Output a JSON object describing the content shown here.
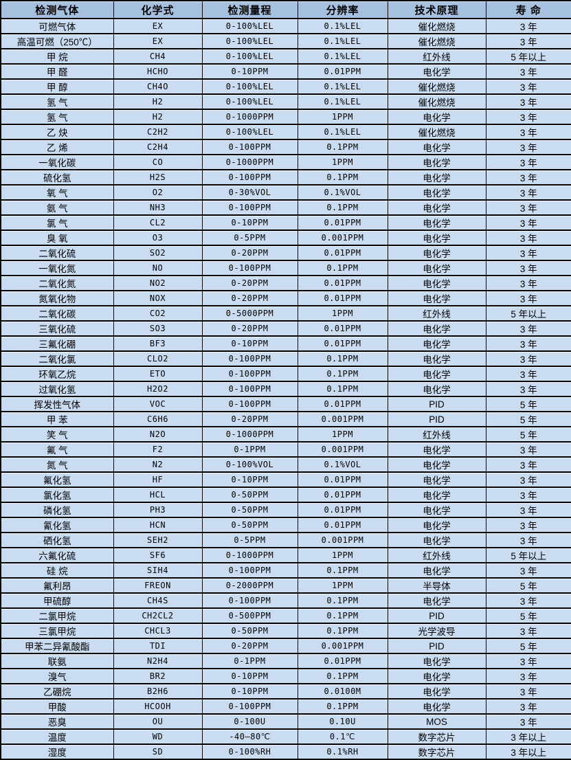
{
  "colors": {
    "header_bg": "#a6c1e0",
    "row_bg": "#c9dcf2",
    "border": "#000000",
    "text": "#000000"
  },
  "table": {
    "headers": [
      "检测气体",
      "化学式",
      "检测量程",
      "分辨率",
      "技术原理",
      "寿 命"
    ],
    "rows": [
      [
        "可燃气体",
        "EX",
        "0-100%LEL",
        "0.1%LEL",
        "催化燃烧",
        "3 年"
      ],
      [
        "高温可燃（250℃）",
        "EX",
        "0-100%LEL",
        "0.1%LEL",
        "催化燃烧",
        "3 年"
      ],
      [
        "甲 烷",
        "CH4",
        "0-100%LEL",
        "0.1%LEL",
        "红外线",
        "5 年以上"
      ],
      [
        "甲 醛",
        "HCHO",
        "0-10PPM",
        "0.01PPM",
        "电化学",
        "3 年"
      ],
      [
        "甲 醇",
        "CH4O",
        "0-100%LEL",
        "0.1%LEL",
        "催化燃烧",
        "3 年"
      ],
      [
        "氢 气",
        "H2",
        "0-100%LEL",
        "0.1%LEL",
        "催化燃烧",
        "3 年"
      ],
      [
        "氢 气",
        "H2",
        "0-1000PPM",
        "1PPM",
        "电化学",
        "3 年"
      ],
      [
        "乙 炔",
        "C2H2",
        "0-100%LEL",
        "0.1%LEL",
        "催化燃烧",
        "3 年"
      ],
      [
        "乙 烯",
        "C2H4",
        "0-100PPM",
        "0.1PPM",
        "电化学",
        "3 年"
      ],
      [
        "一氧化碳",
        "CO",
        "0-1000PPM",
        "1PPM",
        "电化学",
        "3 年"
      ],
      [
        "硫化氢",
        "H2S",
        "0-100PPM",
        "0.1PPM",
        "电化学",
        "3 年"
      ],
      [
        "氧 气",
        "O2",
        "0-30%VOL",
        "0.1%VOL",
        "电化学",
        "3 年"
      ],
      [
        "氨 气",
        "NH3",
        "0-100PPM",
        "0.1PPM",
        "电化学",
        "3 年"
      ],
      [
        "氯 气",
        "CL2",
        "0-10PPM",
        "0.01PPM",
        "电化学",
        "3 年"
      ],
      [
        "臭 氧",
        "O3",
        "0-5PPM",
        "0.001PPM",
        "电化学",
        "3 年"
      ],
      [
        "二氧化硫",
        "SO2",
        "0-20PPM",
        "0.01PPM",
        "电化学",
        "3 年"
      ],
      [
        "一氧化氮",
        "NO",
        "0-100PPM",
        "0.1PPM",
        "电化学",
        "3 年"
      ],
      [
        "二氧化氮",
        "NO2",
        "0-20PPM",
        "0.01PPM",
        "电化学",
        "3 年"
      ],
      [
        "氮氧化物",
        "NOX",
        "0-20PPM",
        "0.01PPM",
        "电化学",
        "3 年"
      ],
      [
        "二氧化碳",
        "CO2",
        "0-5000PPM",
        "1PPM",
        "红外线",
        "5 年以上"
      ],
      [
        "三氧化硫",
        "SO3",
        "0-20PPM",
        "0.01PPM",
        "电化学",
        "3 年"
      ],
      [
        "三氟化硼",
        "BF3",
        "0-10PPM",
        "0.01PPM",
        "电化学",
        "3 年"
      ],
      [
        "二氧化氯",
        "CLO2",
        "0-100PPM",
        "0.1PPM",
        "电化学",
        "3 年"
      ],
      [
        "环氧乙烷",
        "ETO",
        "0-100PPM",
        "0.1PPM",
        "电化学",
        "3 年"
      ],
      [
        "过氧化氢",
        "H2O2",
        "0-100PPM",
        "0.1PPM",
        "电化学",
        "3 年"
      ],
      [
        "挥发性气体",
        "VOC",
        "0-100PPM",
        "0.01PPM",
        "PID",
        "5 年"
      ],
      [
        "甲 苯",
        "C6H6",
        "0-20PPM",
        "0.001PPM",
        "PID",
        "5 年"
      ],
      [
        "笑 气",
        "N2O",
        "0-1000PPM",
        "1PPM",
        "红外线",
        "5 年"
      ],
      [
        "氟 气",
        "F2",
        "0-1PPM",
        "0.001PPM",
        "电化学",
        "3 年"
      ],
      [
        "氮 气",
        "N2",
        "0-100%VOL",
        "0.1%VOL",
        "电化学",
        "3 年"
      ],
      [
        "氟化氢",
        "HF",
        "0-10PPM",
        "0.01PPM",
        "电化学",
        "3 年"
      ],
      [
        "氯化氢",
        "HCL",
        "0-50PPM",
        "0.01PPM",
        "电化学",
        "3 年"
      ],
      [
        "磷化氢",
        "PH3",
        "0-50PPM",
        "0.01PPM",
        "电化学",
        "3 年"
      ],
      [
        "氰化氢",
        "HCN",
        "0-50PPM",
        "0.01PPM",
        "电化学",
        "3 年"
      ],
      [
        "硒化氢",
        "SEH2",
        "0-5PPM",
        "0.001PPM",
        "电化学",
        "3 年"
      ],
      [
        "六氟化硫",
        "SF6",
        "0-1000PPM",
        "1PPM",
        "红外线",
        "5 年以上"
      ],
      [
        "硅 烷",
        "SIH4",
        "0-100PPM",
        "0.1PPM",
        "电化学",
        "3 年"
      ],
      [
        "氟利昂",
        "FREON",
        "0-2000PPM",
        "1PPM",
        "半导体",
        "5 年"
      ],
      [
        "甲硫醇",
        "CH4S",
        "0-100PPM",
        "0.1PPM",
        "电化学",
        "3 年"
      ],
      [
        "二氯甲烷",
        "CH2CL2",
        "0-500PPM",
        "0.1PPM",
        "PID",
        "5 年"
      ],
      [
        "三氯甲烷",
        "CHCL3",
        "0-50PPM",
        "0.1PPM",
        "光学波导",
        "3 年"
      ],
      [
        "甲苯二异氰酸酯",
        "TDI",
        "0-20PPM",
        "0.001PPM",
        "PID",
        "5 年"
      ],
      [
        "联氨",
        "N2H4",
        "0-1PPM",
        "0.01PPM",
        "电化学",
        "3 年"
      ],
      [
        "溴气",
        "BR2",
        "0-10PPM",
        "0.1PPM",
        "电化学",
        "3 年"
      ],
      [
        "乙硼烷",
        "B2H6",
        "0-10PPM",
        "0.0100M",
        "电化学",
        "3 年"
      ],
      [
        "甲酸",
        "HCOOH",
        "0-100PPM",
        "0.1PPM",
        "电化学",
        "3 年"
      ],
      [
        "恶臭",
        "OU",
        "0-100U",
        "0.10U",
        "MOS",
        "3 年"
      ],
      [
        "温度",
        "WD",
        "-40—80℃",
        "0.1℃",
        "数字芯片",
        "3 年以上"
      ],
      [
        "湿度",
        "SD",
        "0-100%RH",
        "0.1%RH",
        "数字芯片",
        "3 年以上"
      ]
    ]
  }
}
